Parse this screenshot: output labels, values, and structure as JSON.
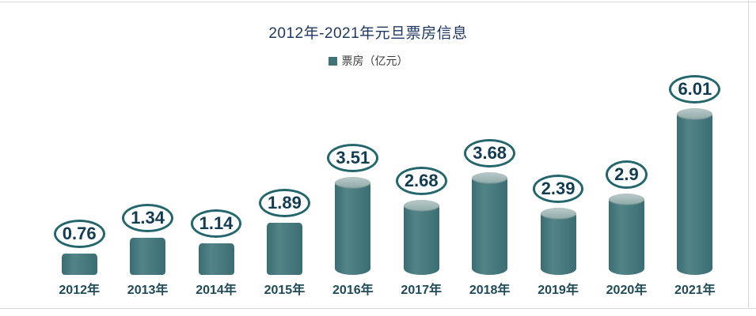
{
  "page": {
    "background": "#ffffff",
    "frame_color": "#d9d9d9"
  },
  "chart_data": {
    "type": "bar",
    "title": "2012年-2021年元旦票房信息",
    "legend": {
      "label": "票房（亿元）",
      "position": "top-center",
      "marker": "square-icon"
    },
    "categories": [
      "2012年",
      "2013年",
      "2014年",
      "2015年",
      "2016年",
      "2017年",
      "2018年",
      "2019年",
      "2020年",
      "2021年"
    ],
    "values": [
      0.76,
      1.34,
      1.14,
      1.89,
      3.51,
      2.68,
      3.68,
      2.39,
      2.9,
      6.01
    ],
    "data_labels": [
      "0.76",
      "1.34",
      "1.14",
      "1.89",
      "3.51",
      "2.68",
      "3.68",
      "2.39",
      "2.9",
      "6.01"
    ],
    "series_name": "票房（亿元）",
    "xlabel": "",
    "ylabel": "",
    "ylim": [
      0,
      6.5
    ],
    "grid": false,
    "axes_visible": false,
    "bar_style": "cylinder",
    "colors": {
      "bar_edge": "#3a6e73",
      "bar_mid": "#528487",
      "bar_base": "#45787c",
      "bar_top_face_light": "#b2c4c3",
      "bar_top_face_dark": "#8ca8a8",
      "data_label_text": "#123c52",
      "data_label_ring": "#23666b",
      "category_text": "#1e4b57",
      "title_text": "#1f3864",
      "legend_text": "#3a3a3a",
      "legend_marker": "#3e7378"
    }
  }
}
